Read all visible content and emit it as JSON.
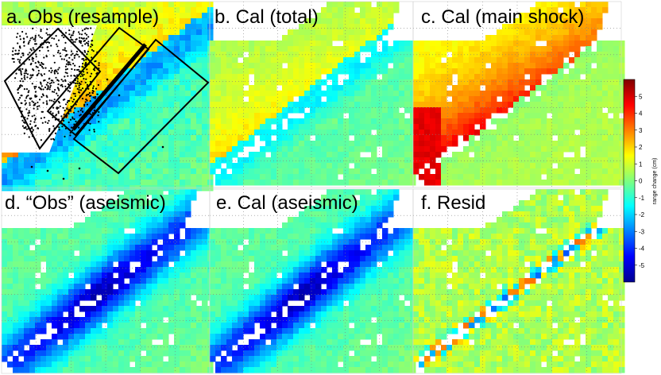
{
  "panels": [
    {
      "id": "a",
      "label": "a. Obs (resample)",
      "field": "obs"
    },
    {
      "id": "b",
      "label": "b. Cal (total)",
      "field": "total"
    },
    {
      "id": "c",
      "label": "c. Cal (main shock)",
      "field": "main"
    },
    {
      "id": "d",
      "label": "d. “Obs” (aseismic)",
      "field": "aseismic"
    },
    {
      "id": "e",
      "label": "e. Cal (aseismic)",
      "field": "aseismic"
    },
    {
      "id": "f",
      "label": "f. Resid",
      "field": "resid"
    }
  ],
  "colorbar": {
    "title": "range change (cm)",
    "min": -6,
    "max": 6,
    "ticks": [
      "5",
      "4",
      "3",
      "2",
      "1",
      "0",
      "-1",
      "-2",
      "-3",
      "-4",
      "-5"
    ],
    "colormap": "jet"
  },
  "colors": {
    "background": "#ffffff",
    "grid": "#808080",
    "fault_line": "#000000",
    "event_points": "#000000"
  }
}
